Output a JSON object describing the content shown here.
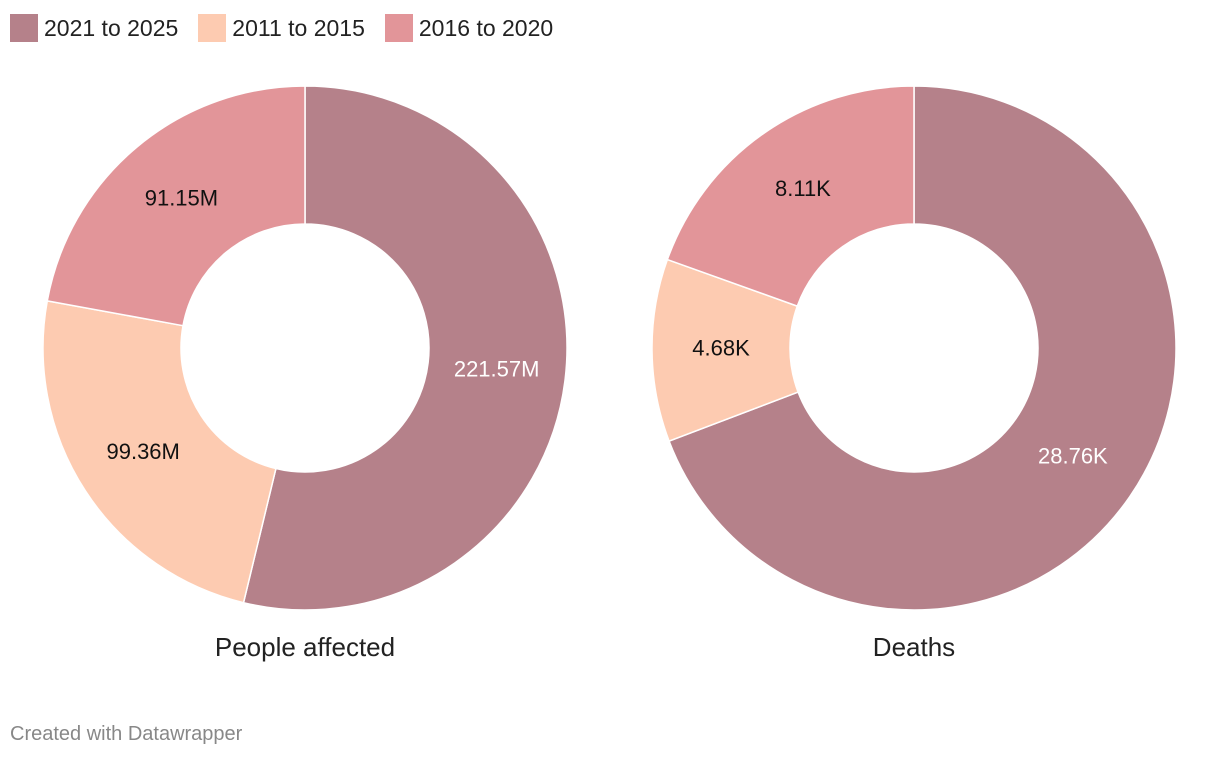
{
  "legend": {
    "items": [
      {
        "label": "2021 to 2025",
        "color": "#b5818a"
      },
      {
        "label": "2011 to 2015",
        "color": "#fdcbb1"
      },
      {
        "label": "2016 to 2020",
        "color": "#e29599"
      }
    ]
  },
  "chart_data": [
    {
      "type": "pie",
      "variant": "donut",
      "title": "People affected",
      "categories": [
        "2021 to 2025",
        "2011 to 2015",
        "2016 to 2020"
      ],
      "values": [
        221.57,
        99.36,
        91.15
      ],
      "unit": "M",
      "data_labels": [
        "221.57M",
        "99.36M",
        "91.15M"
      ],
      "colors": [
        "#b5818a",
        "#fdcbb1",
        "#e29599"
      ],
      "label_colors": [
        "#ffffff",
        "#111111",
        "#111111"
      ],
      "legend_position": "top-left"
    },
    {
      "type": "pie",
      "variant": "donut",
      "title": "Deaths",
      "categories": [
        "2021 to 2025",
        "2011 to 2015",
        "2016 to 2020"
      ],
      "values": [
        28.76,
        4.68,
        8.11
      ],
      "unit": "K",
      "data_labels": [
        "28.76K",
        "4.68K",
        "8.11K"
      ],
      "colors": [
        "#b5818a",
        "#fdcbb1",
        "#e29599"
      ],
      "label_colors": [
        "#ffffff",
        "#111111",
        "#111111"
      ],
      "legend_position": "top-left"
    }
  ],
  "footer": {
    "text": "Created with Datawrapper"
  }
}
